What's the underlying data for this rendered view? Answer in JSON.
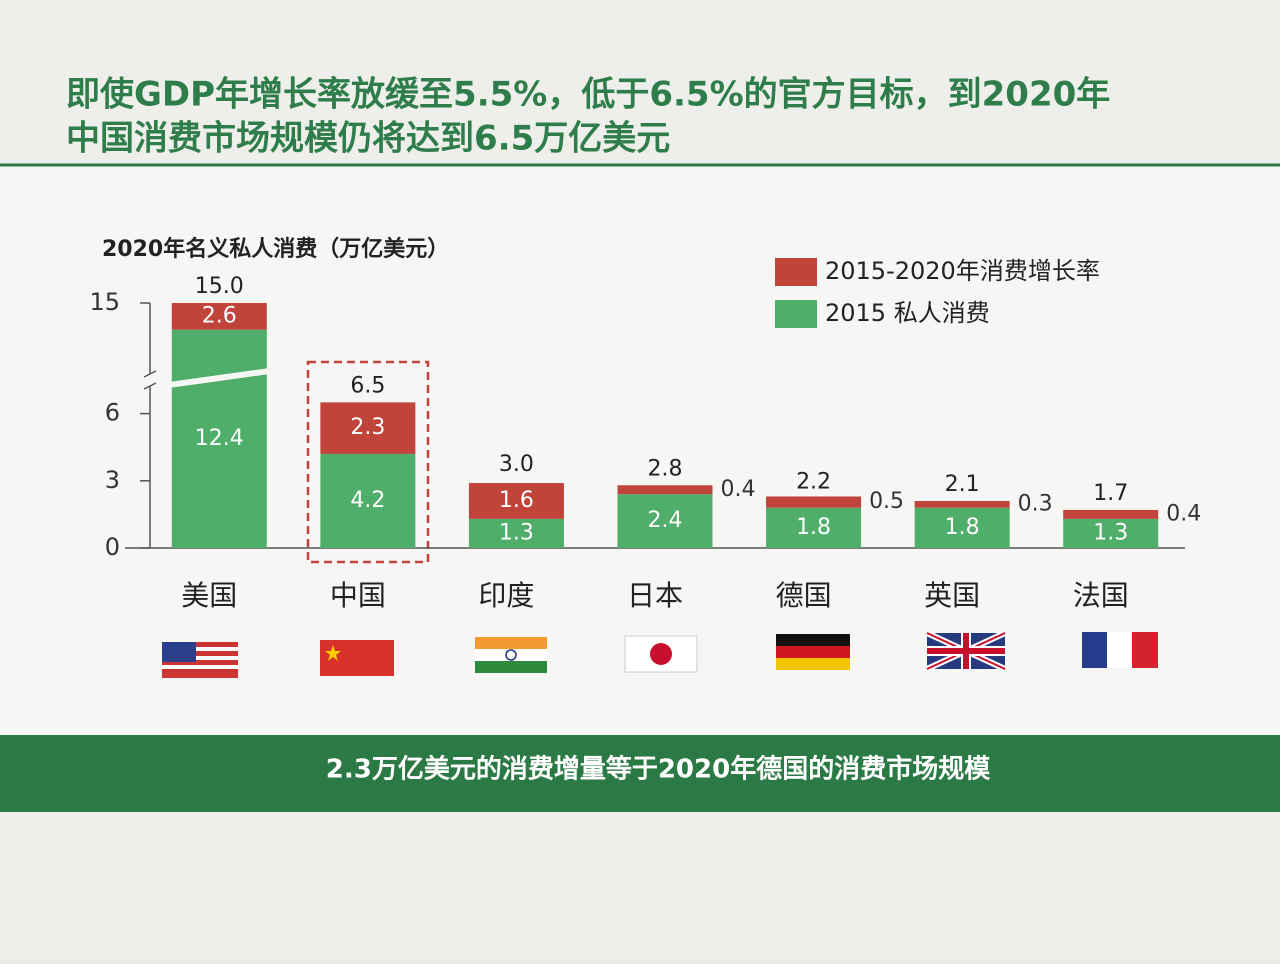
{
  "header": {
    "title_lines": [
      "即使GDP年增长率放缓至5.5%，低于6.5%的官方目标，到2020年",
      "中国消费市场规模仍将达到6.5万亿美元"
    ]
  },
  "chart_data": {
    "type": "stacked_bar",
    "title": "2020年名义私人消费（万亿美元）",
    "categories": [
      "美国",
      "中国",
      "印度",
      "日本",
      "德国",
      "英国",
      "法国"
    ],
    "series": [
      {
        "name": "2015 私人消费",
        "color": "#4fae6a",
        "values": [
          12.4,
          4.2,
          1.3,
          2.4,
          1.8,
          1.8,
          1.3
        ]
      },
      {
        "name": "2015-2020年消费增长率",
        "color": "#c1443b",
        "values": [
          2.6,
          2.3,
          1.6,
          0.4,
          0.5,
          0.3,
          0.4
        ]
      }
    ],
    "totals": {
      "values": [
        15,
        6.5,
        3,
        2.8,
        2.2,
        2.1,
        1.7
      ],
      "value_labels": [
        "15.0",
        "6.5",
        "3.0",
        "2.8",
        "2.2",
        "2.1",
        "1.7"
      ]
    },
    "ylim": [
      0,
      15
    ],
    "yticks": [
      0,
      3,
      6,
      15
    ],
    "axis_break": true,
    "legend": "top-right"
  },
  "footer": {
    "text": "2.3万亿美元的消费增量等于2020年德国的消费市场规模"
  }
}
